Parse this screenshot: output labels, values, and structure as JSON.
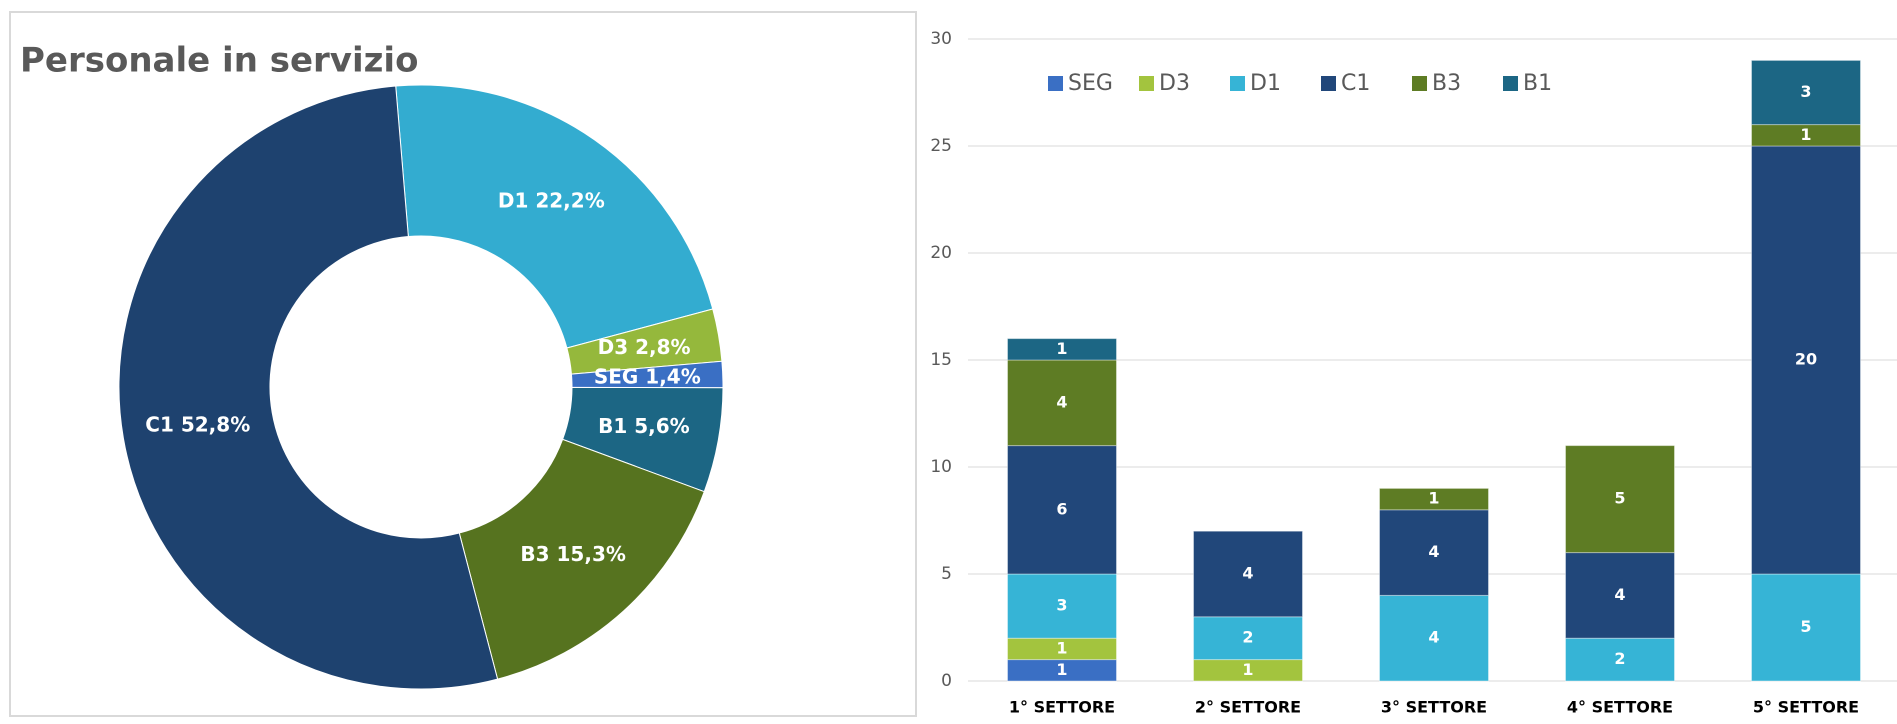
{
  "chart_data": [
    {
      "type": "donut",
      "title": "Personale in servizio",
      "categories": [
        "D1",
        "D3",
        "SEG",
        "B1",
        "B3",
        "C1"
      ],
      "values": [
        22.2,
        2.8,
        1.4,
        5.6,
        15.3,
        52.8
      ],
      "value_labels": [
        "22,2%",
        "2,8%",
        "1,4%",
        "5,6%",
        "15,3%",
        "52,8%"
      ],
      "colors": [
        "#33acd0",
        "#95b83c",
        "#3a6fc4",
        "#1c6684",
        "#56731f",
        "#1e426f"
      ]
    },
    {
      "type": "stacked_bar",
      "categories": [
        "1° SETTORE",
        "2° SETTORE",
        "3° SETTORE",
        "4° SETTORE",
        "5° SETTORE"
      ],
      "series": [
        {
          "name": "SEG",
          "color": "#3a6fc4",
          "values": [
            1,
            null,
            null,
            null,
            null
          ]
        },
        {
          "name": "D3",
          "color": "#a3c43e",
          "values": [
            1,
            1,
            null,
            null,
            null
          ]
        },
        {
          "name": "D1",
          "color": "#36b4d6",
          "values": [
            3,
            2,
            4,
            2,
            5
          ]
        },
        {
          "name": "C1",
          "color": "#21477a",
          "values": [
            6,
            4,
            4,
            4,
            20
          ]
        },
        {
          "name": "B3",
          "color": "#5e7c24",
          "values": [
            4,
            null,
            1,
            5,
            1
          ]
        },
        {
          "name": "B1",
          "color": "#1c6684",
          "values": [
            1,
            null,
            null,
            null,
            3
          ]
        }
      ],
      "ylim": [
        0,
        30
      ],
      "yticks": [
        0,
        5,
        10,
        15,
        20,
        25,
        30
      ],
      "grid": true,
      "legend": "top"
    }
  ]
}
